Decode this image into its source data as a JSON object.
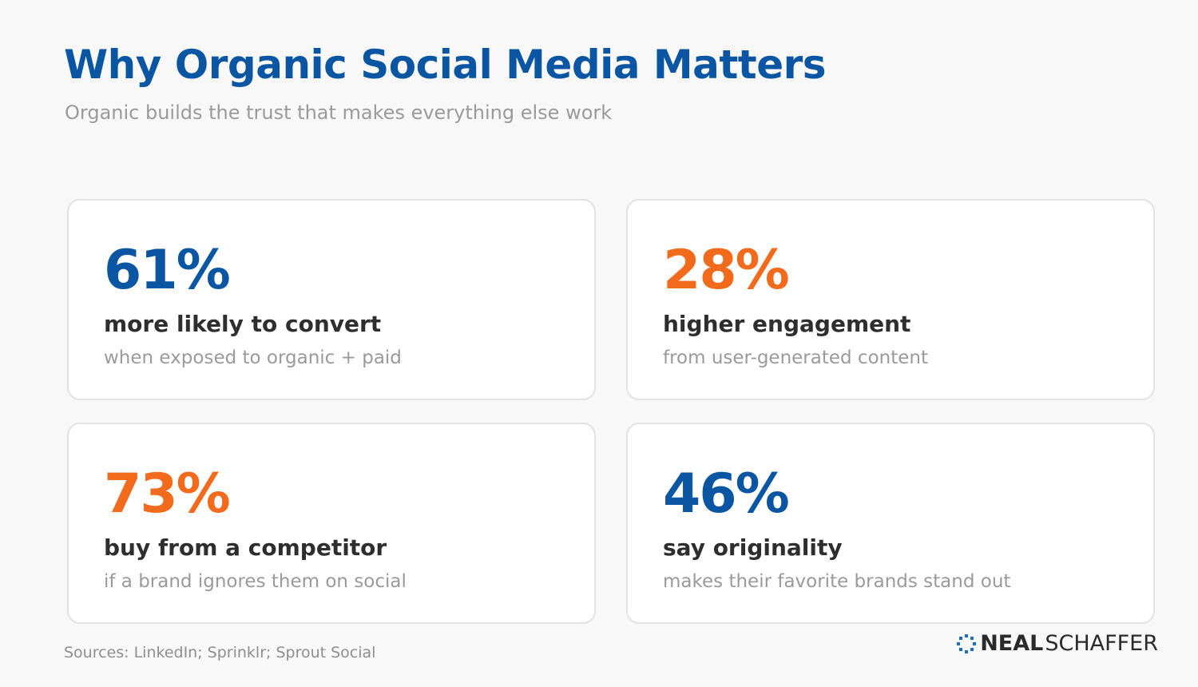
{
  "header": {
    "title": "Why Organic Social Media Matters",
    "subtitle": "Organic builds the trust that makes everything else work"
  },
  "cards": [
    {
      "stat": "61%",
      "headline": "more likely to convert",
      "detail": "when exposed to organic + paid",
      "color": "#0b56a3"
    },
    {
      "stat": "28%",
      "headline": "higher engagement",
      "detail": "from user-generated content",
      "color": "#f26a1b"
    },
    {
      "stat": "73%",
      "headline": "buy from a competitor",
      "detail": "if a brand ignores them on social",
      "color": "#f26a1b"
    },
    {
      "stat": "46%",
      "headline": "say originality",
      "detail": "makes their favorite brands stand out",
      "color": "#0b56a3"
    }
  ],
  "footer": {
    "sources": "Sources: LinkedIn; Sprinklr; Sprout Social",
    "logo_first": "NEAL",
    "logo_last": "SCHAFFER"
  }
}
